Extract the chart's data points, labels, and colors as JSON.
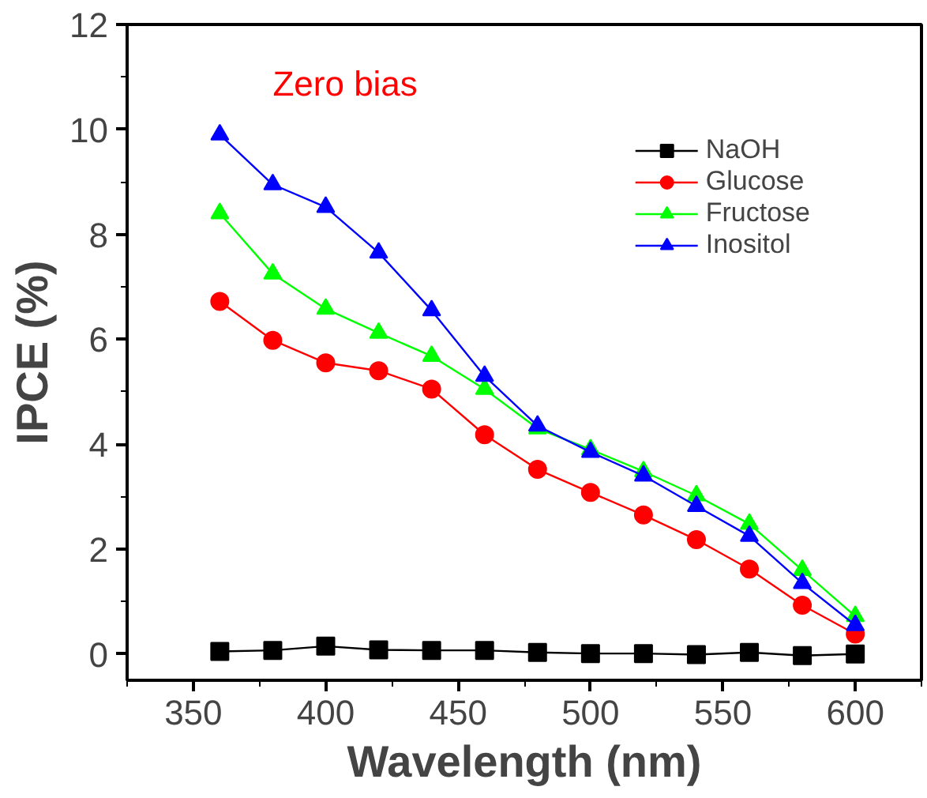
{
  "chart_data": {
    "type": "line",
    "xlabel": "Wavelength (nm)",
    "ylabel": "IPCE (%)",
    "annotations": [
      "Zero bias"
    ],
    "x": [
      360,
      380,
      400,
      420,
      440,
      460,
      480,
      500,
      520,
      540,
      560,
      580,
      600
    ],
    "series": [
      {
        "name": "NaOH",
        "color": "#000000",
        "marker": "square",
        "values": [
          0.05,
          0.07,
          0.15,
          0.08,
          0.07,
          0.07,
          0.03,
          0.01,
          0.01,
          -0.01,
          0.03,
          -0.03,
          0.0
        ]
      },
      {
        "name": "Glucose",
        "color": "#ff0000",
        "marker": "circle",
        "values": [
          6.72,
          5.98,
          5.55,
          5.4,
          5.05,
          4.18,
          3.52,
          3.08,
          2.65,
          2.18,
          1.62,
          0.93,
          0.38
        ]
      },
      {
        "name": "Fructose",
        "color": "#00ff00",
        "marker": "triangle",
        "values": [
          8.4,
          7.25,
          6.58,
          6.12,
          5.68,
          5.05,
          4.3,
          3.9,
          3.48,
          3.02,
          2.48,
          1.6,
          0.72
        ]
      },
      {
        "name": "Inositol",
        "color": "#0000ff",
        "marker": "triangle",
        "values": [
          9.9,
          8.95,
          8.52,
          7.65,
          6.55,
          5.3,
          4.35,
          3.85,
          3.4,
          2.82,
          2.25,
          1.35,
          0.55
        ]
      }
    ],
    "xlim": [
      325,
      625
    ],
    "ylim": [
      -0.5,
      12
    ],
    "xticks": [
      350,
      400,
      450,
      500,
      550,
      600
    ],
    "yticks": [
      0,
      2,
      4,
      6,
      8,
      10,
      12
    ],
    "grid": false,
    "legend": "top right",
    "line_style": "solid"
  }
}
